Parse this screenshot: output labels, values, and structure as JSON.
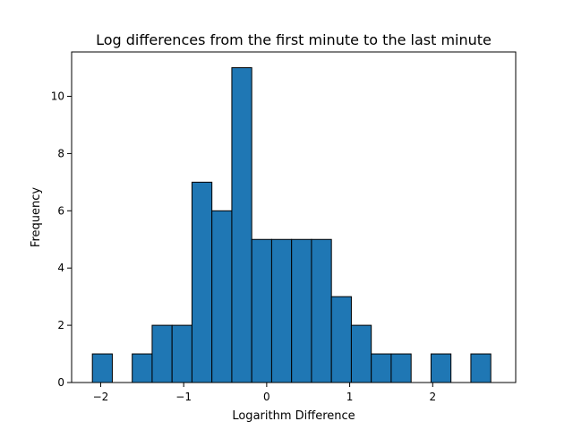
{
  "chart_data": {
    "type": "bar",
    "title": "Log differences from the first minute to the last minute",
    "xlabel": "Logarithm Difference",
    "ylabel": "Frequency",
    "xlim": [
      -2.35,
      3.0
    ],
    "ylim": [
      0,
      11.55
    ],
    "xticks": [
      -2,
      -1,
      0,
      1,
      2
    ],
    "yticks": [
      0,
      2,
      4,
      6,
      8,
      10
    ],
    "grid": false,
    "bar_color": "#1f77b4",
    "edge_color": "#000000",
    "bins": [
      {
        "x0": -2.1,
        "x1": -1.86,
        "count": 1
      },
      {
        "x0": -1.86,
        "x1": -1.62,
        "count": 0
      },
      {
        "x0": -1.62,
        "x1": -1.38,
        "count": 1
      },
      {
        "x0": -1.38,
        "x1": -1.14,
        "count": 2
      },
      {
        "x0": -1.14,
        "x1": -0.9,
        "count": 2
      },
      {
        "x0": -0.9,
        "x1": -0.66,
        "count": 7
      },
      {
        "x0": -0.66,
        "x1": -0.42,
        "count": 6
      },
      {
        "x0": -0.42,
        "x1": -0.18,
        "count": 11
      },
      {
        "x0": -0.18,
        "x1": 0.06,
        "count": 5
      },
      {
        "x0": 0.06,
        "x1": 0.3,
        "count": 5
      },
      {
        "x0": 0.3,
        "x1": 0.54,
        "count": 5
      },
      {
        "x0": 0.54,
        "x1": 0.78,
        "count": 5
      },
      {
        "x0": 0.78,
        "x1": 1.02,
        "count": 3
      },
      {
        "x0": 1.02,
        "x1": 1.26,
        "count": 2
      },
      {
        "x0": 1.26,
        "x1": 1.5,
        "count": 1
      },
      {
        "x0": 1.5,
        "x1": 1.74,
        "count": 1
      },
      {
        "x0": 1.74,
        "x1": 1.98,
        "count": 0
      },
      {
        "x0": 1.98,
        "x1": 2.22,
        "count": 1
      },
      {
        "x0": 2.22,
        "x1": 2.46,
        "count": 0
      },
      {
        "x0": 2.46,
        "x1": 2.7,
        "count": 1
      }
    ]
  }
}
